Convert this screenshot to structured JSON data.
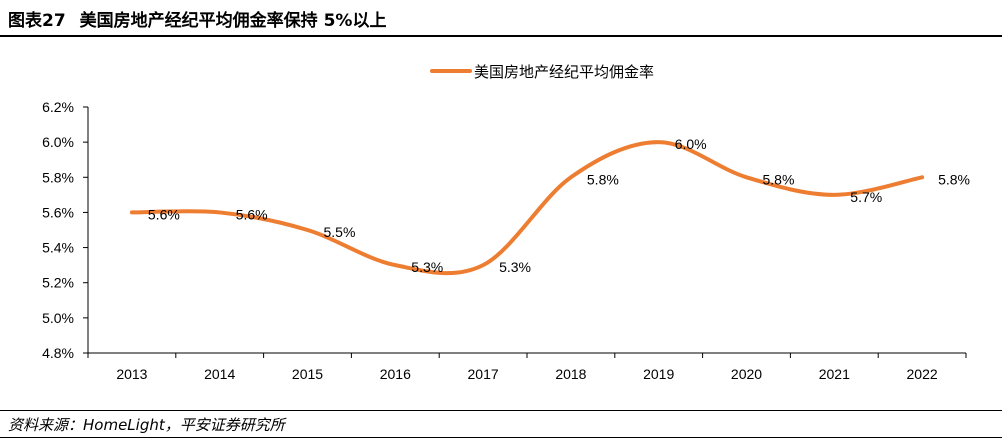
{
  "figure": {
    "number": "图表27",
    "title": "美国房地产经纪平均佣金率保持 5%以上"
  },
  "source": "资料来源：HomeLight，平安证券研究所",
  "colors": {
    "series": "#ED7D31",
    "axis": "#000000"
  },
  "chart_data": {
    "type": "line",
    "smooth": true,
    "categories": [
      "2013",
      "2014",
      "2015",
      "2016",
      "2017",
      "2018",
      "2019",
      "2020",
      "2021",
      "2022"
    ],
    "series": [
      {
        "name": "美国房地产经纪平均佣金率",
        "values": [
          5.6,
          5.6,
          5.5,
          5.3,
          5.3,
          5.8,
          6.0,
          5.8,
          5.7,
          5.8
        ],
        "labels": [
          "5.6%",
          "5.6%",
          "5.5%",
          "5.3%",
          "5.3%",
          "5.8%",
          "6.0%",
          "5.8%",
          "5.7%",
          "5.8%"
        ]
      }
    ],
    "yticks": [
      "4.8%",
      "5.0%",
      "5.2%",
      "5.4%",
      "5.6%",
      "5.8%",
      "6.0%",
      "6.2%"
    ],
    "ylim": [
      4.8,
      6.2
    ],
    "xlabel": "",
    "ylabel": "",
    "grid": false,
    "legend": "top-center"
  }
}
